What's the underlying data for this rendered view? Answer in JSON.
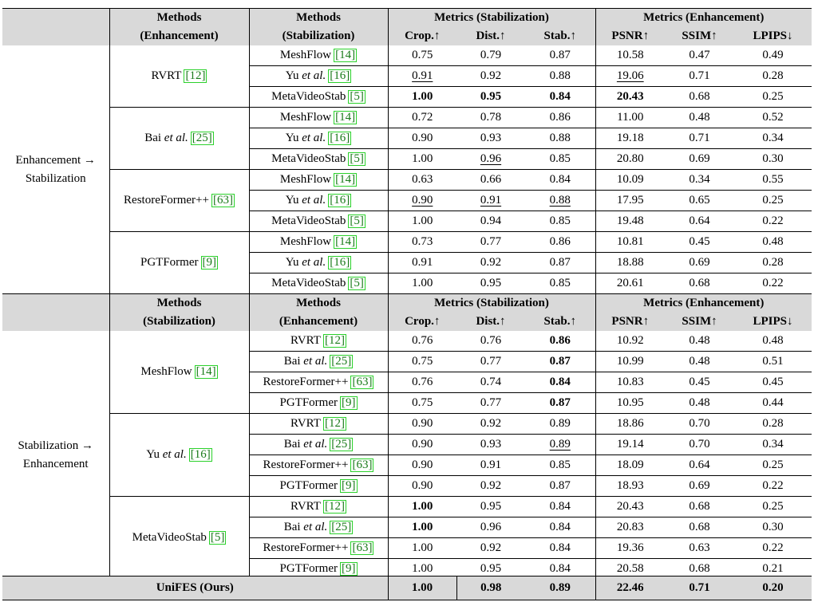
{
  "table1": {
    "header": {
      "col1_line1": "Methods",
      "col1_line2": "(Enhancement)",
      "col2_line1": "Methods",
      "col2_line2": "(Stabilization)",
      "metrics_stab": "Metrics (Stabilization)",
      "metrics_enh": "Metrics (Enhancement)",
      "crop": "Crop.↑",
      "dist": "Dist.↑",
      "stab": "Stab.↑",
      "psnr": "PSNR↑",
      "ssim": "SSIM↑",
      "lpips": "LPIPS↓"
    },
    "group_line1": "Enhancement →",
    "group_line2": "Stabilization",
    "blocks": [
      {
        "name": "RVRT",
        "ref": "[12]",
        "rows": [
          {
            "m": "MeshFlow",
            "r": "[14]",
            "v": [
              "0.75",
              "0.79",
              "0.87",
              "10.58",
              "0.47",
              "0.49"
            ]
          },
          {
            "m": "Yu ",
            "i": "et al.",
            "r": "[16]",
            "v": [
              "0.91",
              "0.92",
              "0.88",
              "19.06",
              "0.71",
              "0.28"
            ]
          },
          {
            "m": "MetaVideoStab",
            "r": "[5]",
            "v": [
              "1.00",
              "0.95",
              "0.84",
              "20.43",
              "0.68",
              "0.25"
            ]
          }
        ]
      },
      {
        "name": "Bai ",
        "italic": "et al.",
        "ref": "[25]",
        "rows": [
          {
            "m": "MeshFlow",
            "r": "[14]",
            "v": [
              "0.72",
              "0.78",
              "0.86",
              "11.00",
              "0.48",
              "0.52"
            ]
          },
          {
            "m": "Yu ",
            "i": "et al.",
            "r": "[16]",
            "v": [
              "0.90",
              "0.93",
              "0.88",
              "19.18",
              "0.71",
              "0.34"
            ]
          },
          {
            "m": "MetaVideoStab",
            "r": "[5]",
            "v": [
              "1.00",
              "0.96",
              "0.85",
              "20.80",
              "0.69",
              "0.30"
            ]
          }
        ]
      },
      {
        "name": "RestoreFormer++",
        "ref": "[63]",
        "rows": [
          {
            "m": "MeshFlow",
            "r": "[14]",
            "v": [
              "0.63",
              "0.66",
              "0.84",
              "10.09",
              "0.34",
              "0.55"
            ]
          },
          {
            "m": "Yu ",
            "i": "et al.",
            "r": "[16]",
            "v": [
              "0.90",
              "0.91",
              "0.88",
              "17.95",
              "0.65",
              "0.25"
            ]
          },
          {
            "m": "MetaVideoStab",
            "r": "[5]",
            "v": [
              "1.00",
              "0.94",
              "0.85",
              "19.48",
              "0.64",
              "0.22"
            ]
          }
        ]
      },
      {
        "name": "PGTFormer",
        "ref": "[9]",
        "rows": [
          {
            "m": "MeshFlow",
            "r": "[14]",
            "v": [
              "0.73",
              "0.77",
              "0.86",
              "10.81",
              "0.45",
              "0.48"
            ]
          },
          {
            "m": "Yu ",
            "i": "et al.",
            "r": "[16]",
            "v": [
              "0.91",
              "0.92",
              "0.87",
              "18.88",
              "0.69",
              "0.28"
            ]
          },
          {
            "m": "MetaVideoStab",
            "r": "[5]",
            "v": [
              "1.00",
              "0.95",
              "0.85",
              "20.61",
              "0.68",
              "0.22"
            ]
          }
        ]
      }
    ]
  },
  "table2": {
    "header": {
      "col1_line1": "Methods",
      "col1_line2": "(Stabilization)",
      "col2_line1": "Methods",
      "col2_line2": "(Enhancement)",
      "metrics_stab": "Metrics (Stabilization)",
      "metrics_enh": "Metrics (Enhancement)",
      "crop": "Crop.↑",
      "dist": "Dist.↑",
      "stab": "Stab.↑",
      "psnr": "PSNR↑",
      "ssim": "SSIM↑",
      "lpips": "LPIPS↓"
    },
    "group_line1": "Stabilization →",
    "group_line2": "Enhancement",
    "blocks": [
      {
        "name": "MeshFlow",
        "ref": "[14]",
        "rows": [
          {
            "m": "RVRT",
            "r": "[12]",
            "v": [
              "0.76",
              "0.76",
              "0.86",
              "10.92",
              "0.48",
              "0.48"
            ]
          },
          {
            "m": "Bai ",
            "i": "et al.",
            "r": "[25]",
            "v": [
              "0.75",
              "0.77",
              "0.87",
              "10.99",
              "0.48",
              "0.51"
            ]
          },
          {
            "m": "RestoreFormer++",
            "r": "[63]",
            "v": [
              "0.76",
              "0.74",
              "0.84",
              "10.83",
              "0.45",
              "0.45"
            ]
          },
          {
            "m": "PGTFormer",
            "r": "[9]",
            "v": [
              "0.75",
              "0.77",
              "0.87",
              "10.95",
              "0.48",
              "0.44"
            ]
          }
        ]
      },
      {
        "name": "Yu ",
        "italic": "et al.",
        "ref": "[16]",
        "rows": [
          {
            "m": "RVRT",
            "r": "[12]",
            "v": [
              "0.90",
              "0.92",
              "0.89",
              "18.86",
              "0.70",
              "0.28"
            ]
          },
          {
            "m": "Bai ",
            "i": "et al.",
            "r": "[25]",
            "v": [
              "0.90",
              "0.93",
              "0.89",
              "19.14",
              "0.70",
              "0.34"
            ]
          },
          {
            "m": "RestoreFormer++",
            "r": "[63]",
            "v": [
              "0.90",
              "0.91",
              "0.85",
              "18.09",
              "0.64",
              "0.25"
            ]
          },
          {
            "m": "PGTFormer",
            "r": "[9]",
            "v": [
              "0.90",
              "0.92",
              "0.87",
              "18.93",
              "0.69",
              "0.22"
            ]
          }
        ]
      },
      {
        "name": "MetaVideoStab",
        "ref": "[5]",
        "rows": [
          {
            "m": "RVRT",
            "r": "[12]",
            "v": [
              "1.00",
              "0.95",
              "0.84",
              "20.43",
              "0.68",
              "0.25"
            ]
          },
          {
            "m": "Bai ",
            "i": "et al.",
            "r": "[25]",
            "v": [
              "1.00",
              "0.96",
              "0.84",
              "20.83",
              "0.68",
              "0.30"
            ]
          },
          {
            "m": "RestoreFormer++",
            "r": "[63]",
            "v": [
              "1.00",
              "0.92",
              "0.84",
              "19.36",
              "0.63",
              "0.22"
            ]
          },
          {
            "m": "PGTFormer",
            "r": "[9]",
            "v": [
              "1.00",
              "0.95",
              "0.84",
              "20.58",
              "0.68",
              "0.21"
            ]
          }
        ]
      }
    ]
  },
  "ours": {
    "name": "UniFES (Ours)",
    "v": [
      "1.00",
      "0.98",
      "0.89",
      "22.46",
      "0.71",
      "0.20"
    ]
  }
}
